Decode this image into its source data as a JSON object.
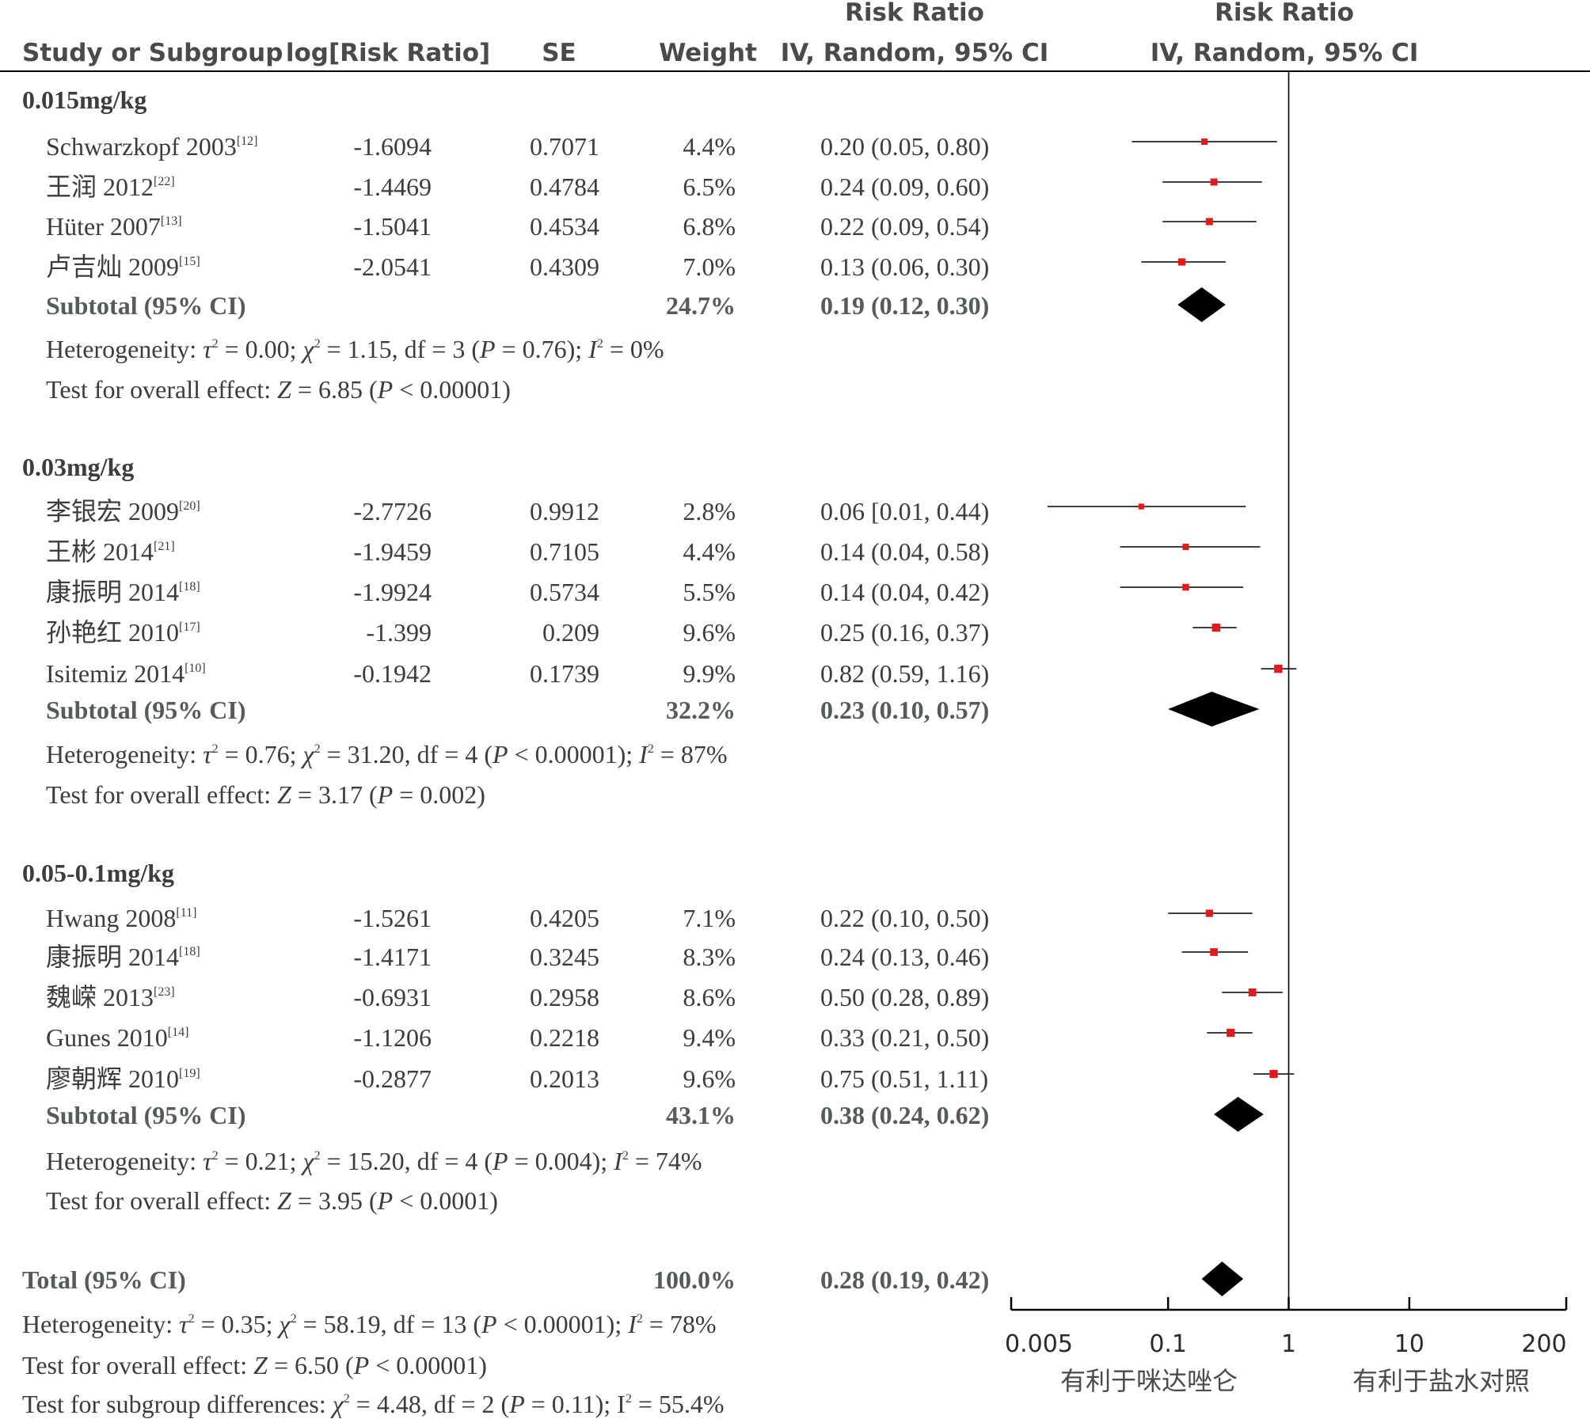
{
  "headers": {
    "study": "Study or Subgroup",
    "log_rr": "log[Risk Ratio]",
    "se": "SE",
    "weight": "Weight",
    "rr_ci_top": "Risk Ratio",
    "rr_ci_bottom": "IV, Random, 95% CI",
    "plot_top": "Risk Ratio",
    "plot_bottom": "IV, Random, 95% CI"
  },
  "chart_data": {
    "type": "forest",
    "x_scale": "log",
    "x_range": [
      0.005,
      200
    ],
    "x_ticks": [
      {
        "value": 0.005,
        "label": "0.005"
      },
      {
        "value": 0.1,
        "label": "0.1"
      },
      {
        "value": 1,
        "label": "1"
      },
      {
        "value": 10,
        "label": "10"
      },
      {
        "value": 200,
        "label": "200"
      }
    ],
    "reference_line": 1,
    "favours_left": "有利于咪达唑仑",
    "favours_right": "有利于盐水对照",
    "groups": [
      {
        "name": "0.015mg/kg",
        "studies": [
          {
            "study": "Schwarzkopf 2003",
            "ref": "[12]",
            "log_rr": "-1.6094",
            "se": "0.7071",
            "weight": "4.4%",
            "rr_text": "0.20 (0.05, 0.80)",
            "rr": 0.2,
            "lo": 0.05,
            "hi": 0.8
          },
          {
            "study": "王润 2012",
            "ref": "[22]",
            "log_rr": "-1.4469",
            "se": "0.4784",
            "weight": "6.5%",
            "rr_text": "0.24 (0.09, 0.60)",
            "rr": 0.24,
            "lo": 0.09,
            "hi": 0.6
          },
          {
            "study": "Hüter 2007",
            "ref": "[13]",
            "log_rr": "-1.5041",
            "se": "0.4534",
            "weight": "6.8%",
            "rr_text": "0.22 (0.09, 0.54)",
            "rr": 0.22,
            "lo": 0.09,
            "hi": 0.54
          },
          {
            "study": "卢吉灿 2009",
            "ref": "[15]",
            "log_rr": "-2.0541",
            "se": "0.4309",
            "weight": "7.0%",
            "rr_text": "0.13 (0.06, 0.30)",
            "rr": 0.13,
            "lo": 0.06,
            "hi": 0.3
          }
        ],
        "subtotal": {
          "label": "Subtotal (95% CI)",
          "weight": "24.7%",
          "rr_text": "0.19 (0.12, 0.30)",
          "rr": 0.19,
          "lo": 0.12,
          "hi": 0.3
        },
        "heterogeneity": {
          "pre": "Heterogeneity: ",
          "tau": "τ",
          "tau_val": " = 0.00; ",
          "chi": "χ",
          "chi_val": " = 1.15, df = 3 (",
          "p": "P",
          "p_val": " = 0.76); ",
          "i": "I",
          "i_val": " = 0%"
        },
        "overall": {
          "pre": "Test for overall effect: ",
          "z": "Z",
          "z_val": " = 6.85 (",
          "p": "P",
          "p_val": " < 0.00001)"
        }
      },
      {
        "name": "0.03mg/kg",
        "studies": [
          {
            "study": "李银宏 2009",
            "ref": "[20]",
            "log_rr": "-2.7726",
            "se": "0.9912",
            "weight": "2.8%",
            "rr_text": "0.06 [0.01, 0.44)",
            "rr": 0.06,
            "lo": 0.01,
            "hi": 0.44
          },
          {
            "study": "王彬 2014",
            "ref": "[21]",
            "log_rr": "-1.9459",
            "se": "0.7105",
            "weight": "4.4%",
            "rr_text": "0.14 (0.04, 0.58)",
            "rr": 0.14,
            "lo": 0.04,
            "hi": 0.58
          },
          {
            "study": "康振明 2014",
            "ref": "[18]",
            "log_rr": "-1.9924",
            "se": "0.5734",
            "weight": "5.5%",
            "rr_text": "0.14 (0.04, 0.42)",
            "rr": 0.14,
            "lo": 0.04,
            "hi": 0.42
          },
          {
            "study": "孙艳红 2010",
            "ref": "[17]",
            "log_rr": "-1.399",
            "se": "0.209",
            "weight": "9.6%",
            "rr_text": "0.25 (0.16, 0.37)",
            "rr": 0.25,
            "lo": 0.16,
            "hi": 0.37
          },
          {
            "study": "Isitemiz 2014",
            "ref": "[10]",
            "log_rr": "-0.1942",
            "se": "0.1739",
            "weight": "9.9%",
            "rr_text": "0.82 (0.59, 1.16)",
            "rr": 0.82,
            "lo": 0.59,
            "hi": 1.16
          }
        ],
        "subtotal": {
          "label": "Subtotal (95% CI)",
          "weight": "32.2%",
          "rr_text": "0.23 (0.10, 0.57)",
          "rr": 0.23,
          "lo": 0.1,
          "hi": 0.57
        },
        "heterogeneity": {
          "pre": "Heterogeneity: ",
          "tau": "τ",
          "tau_val": " = 0.76; ",
          "chi": "χ",
          "chi_val": " = 31.20, df = 4 (",
          "p": "P",
          "p_val": " < 0.00001); ",
          "i": "I",
          "i_val": " = 87%"
        },
        "overall": {
          "pre": "Test for overall effect: ",
          "z": "Z",
          "z_val": " = 3.17 (",
          "p": "P",
          "p_val": " = 0.002)"
        }
      },
      {
        "name": "0.05-0.1mg/kg",
        "studies": [
          {
            "study": "Hwang 2008",
            "ref": "[11]",
            "log_rr": "-1.5261",
            "se": "0.4205",
            "weight": "7.1%",
            "rr_text": "0.22 (0.10, 0.50)",
            "rr": 0.22,
            "lo": 0.1,
            "hi": 0.5
          },
          {
            "study": "康振明 2014",
            "ref": "[18]",
            "log_rr": "-1.4171",
            "se": "0.3245",
            "weight": "8.3%",
            "rr_text": "0.24 (0.13, 0.46)",
            "rr": 0.24,
            "lo": 0.13,
            "hi": 0.46
          },
          {
            "study": "魏嵘 2013",
            "ref": "[23]",
            "log_rr": "-0.6931",
            "se": "0.2958",
            "weight": "8.6%",
            "rr_text": "0.50 (0.28, 0.89)",
            "rr": 0.5,
            "lo": 0.28,
            "hi": 0.89
          },
          {
            "study": "Gunes 2010",
            "ref": "[14]",
            "log_rr": "-1.1206",
            "se": "0.2218",
            "weight": "9.4%",
            "rr_text": "0.33 (0.21, 0.50)",
            "rr": 0.33,
            "lo": 0.21,
            "hi": 0.5
          },
          {
            "study": "廖朝辉 2010",
            "ref": "[19]",
            "log_rr": "-0.2877",
            "se": "0.2013",
            "weight": "9.6%",
            "rr_text": "0.75 (0.51, 1.11)",
            "rr": 0.75,
            "lo": 0.51,
            "hi": 1.11
          }
        ],
        "subtotal": {
          "label": "Subtotal (95% CI)",
          "weight": "43.1%",
          "rr_text": "0.38 (0.24, 0.62)",
          "rr": 0.38,
          "lo": 0.24,
          "hi": 0.62
        },
        "heterogeneity": {
          "pre": "Heterogeneity: ",
          "tau": "τ",
          "tau_val": " = 0.21; ",
          "chi": "χ",
          "chi_val": " = 15.20, df = 4 (",
          "p": "P",
          "p_val": " = 0.004); ",
          "i": "I",
          "i_val": " = 74%"
        },
        "overall": {
          "pre": "Test for overall effect: ",
          "z": "Z",
          "z_val": " = 3.95 (",
          "p": "P",
          "p_val": " < 0.0001)"
        }
      }
    ],
    "total": {
      "label": "Total (95% CI)",
      "weight": "100.0%",
      "rr_text": "0.28 (0.19, 0.42)",
      "rr": 0.28,
      "lo": 0.19,
      "hi": 0.42,
      "heterogeneity": {
        "pre": "Heterogeneity: ",
        "tau": "τ",
        "tau_val": " = 0.35; ",
        "chi": "χ",
        "chi_val": " = 58.19, df = 13 (",
        "p": "P",
        "p_val": " < 0.00001); ",
        "i": "I",
        "i_val": " = 78%"
      },
      "overall": {
        "pre": "Test for overall effect: ",
        "z": "Z",
        "z_val": " = 6.50 (",
        "p": "P",
        "p_val": " < 0.00001)"
      },
      "subgroup": {
        "pre": "Test for subgroup differences: ",
        "chi": "χ",
        "chi_val": " = 4.48, df = 2 (",
        "p": "P",
        "p_val": " = 0.11); ",
        "i": "I",
        "i_val": " = 55.4%"
      }
    }
  },
  "colors": {
    "square": "#e31a1c",
    "diamond": "#000000",
    "line": "#000000",
    "text": "#3c3c3c"
  }
}
